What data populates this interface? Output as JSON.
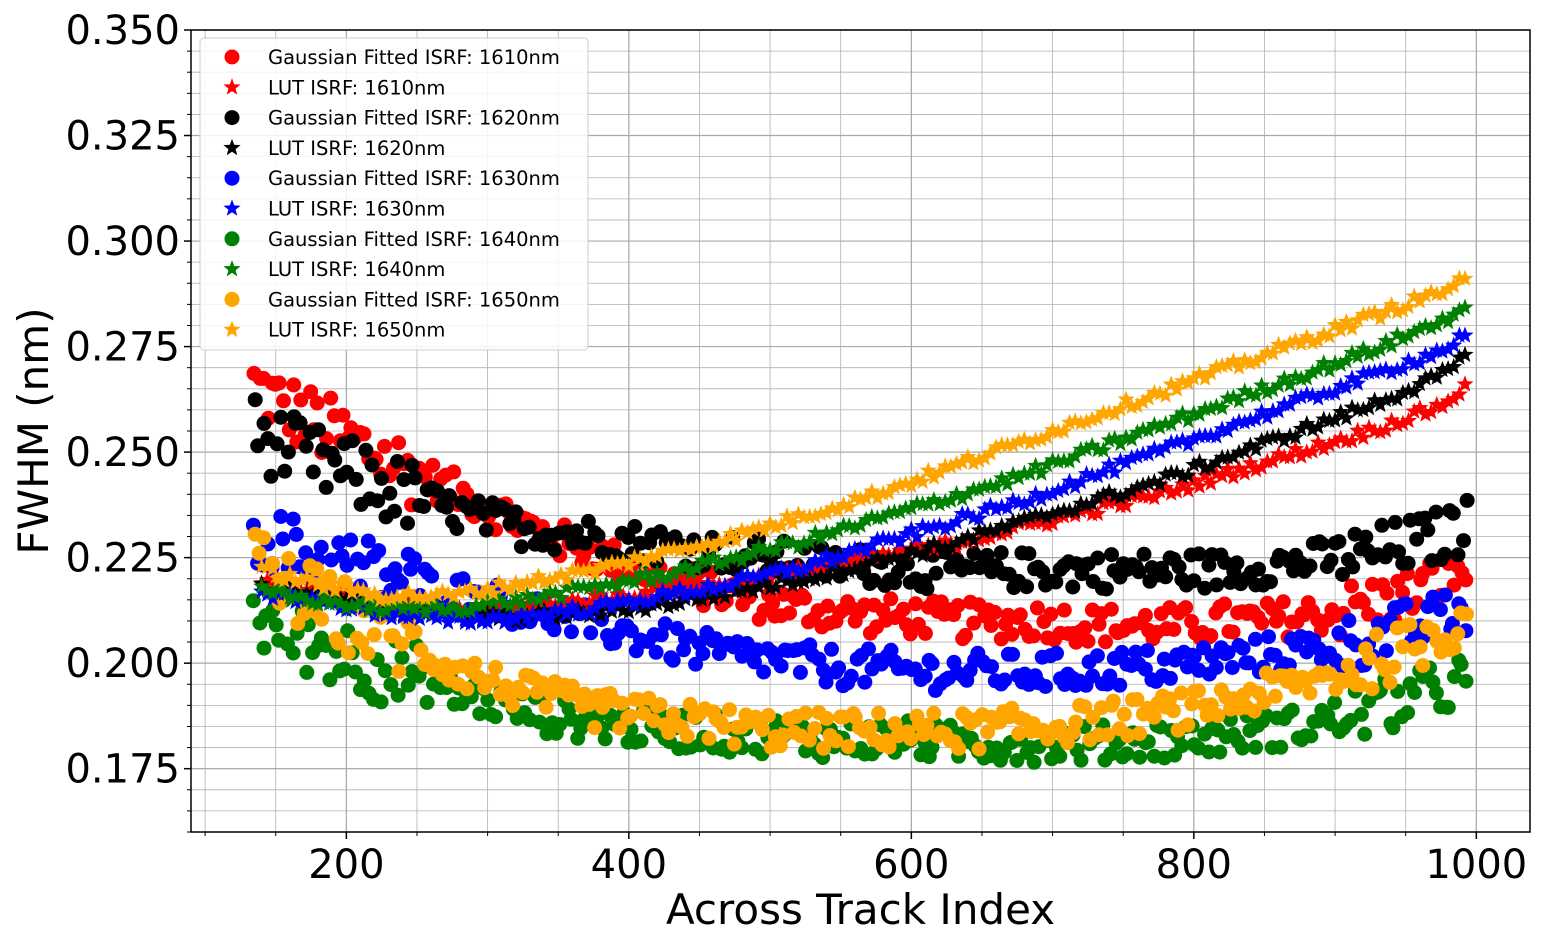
{
  "chart_data": {
    "type": "scatter",
    "title": "",
    "xlabel": "Across Track Index",
    "ylabel": "FWHM (nm)",
    "xlim": [
      90,
      1038
    ],
    "ylim": [
      0.16,
      0.35
    ],
    "x_ticks": [
      200,
      400,
      600,
      800,
      1000
    ],
    "x_tick_labels": [
      "200",
      "400",
      "600",
      "800",
      "1000"
    ],
    "y_ticks": [
      0.175,
      0.2,
      0.225,
      0.25,
      0.275,
      0.3,
      0.325,
      0.35
    ],
    "y_tick_labels": [
      "0.175",
      "0.200",
      "0.225",
      "0.250",
      "0.275",
      "0.300",
      "0.325",
      "0.350"
    ],
    "x_minor_step": 50,
    "y_minor_step": 0.005,
    "grid": "major and minor",
    "legend_position": "top-left",
    "legend": [
      {
        "label": "Gaussian Fitted ISRF: 1610nm",
        "marker": "circle",
        "color": "#ff0000"
      },
      {
        "label": "LUT ISRF: 1610nm",
        "marker": "star",
        "color": "#ff0000"
      },
      {
        "label": "Gaussian Fitted ISRF: 1620nm",
        "marker": "circle",
        "color": "#000000"
      },
      {
        "label": "LUT ISRF: 1620nm",
        "marker": "star",
        "color": "#000000"
      },
      {
        "label": "Gaussian Fitted ISRF: 1630nm",
        "marker": "circle",
        "color": "#0000ff"
      },
      {
        "label": "LUT ISRF: 1630nm",
        "marker": "star",
        "color": "#0000ff"
      },
      {
        "label": "Gaussian Fitted ISRF: 1640nm",
        "marker": "circle",
        "color": "#008000"
      },
      {
        "label": "LUT ISRF: 1640nm",
        "marker": "star",
        "color": "#008000"
      },
      {
        "label": "Gaussian Fitted ISRF: 1650nm",
        "marker": "circle",
        "color": "#ffa500"
      },
      {
        "label": "LUT ISRF: 1650nm",
        "marker": "star",
        "color": "#ffa500"
      }
    ],
    "series": [
      {
        "name": "Gaussian Fitted ISRF: 1610nm",
        "marker": "circle",
        "color": "#ff0000",
        "x": [
          135,
          150,
          175,
          200,
          225,
          250,
          275,
          300,
          325,
          350,
          375,
          400,
          425,
          450,
          475,
          500,
          525,
          550,
          575,
          600,
          625,
          650,
          675,
          700,
          725,
          750,
          775,
          800,
          825,
          850,
          875,
          900,
          925,
          950,
          975,
          995
        ],
        "y": [
          0.266,
          0.262,
          0.257,
          0.253,
          0.249,
          0.245,
          0.241,
          0.237,
          0.233,
          0.229,
          0.226,
          0.223,
          0.22,
          0.218,
          0.216,
          0.214,
          0.213,
          0.212,
          0.211,
          0.211,
          0.21,
          0.21,
          0.21,
          0.21,
          0.209,
          0.209,
          0.209,
          0.209,
          0.21,
          0.21,
          0.211,
          0.212,
          0.214,
          0.216,
          0.22,
          0.223
        ]
      },
      {
        "name": "LUT ISRF: 1610nm",
        "marker": "star",
        "color": "#ff0000",
        "x": [
          140,
          175,
          225,
          275,
          325,
          375,
          425,
          475,
          525,
          575,
          625,
          675,
          725,
          775,
          825,
          875,
          925,
          975,
          995
        ],
        "y": [
          0.219,
          0.217,
          0.214,
          0.212,
          0.213,
          0.215,
          0.217,
          0.219,
          0.222,
          0.225,
          0.228,
          0.232,
          0.236,
          0.24,
          0.245,
          0.25,
          0.255,
          0.261,
          0.266
        ]
      },
      {
        "name": "Gaussian Fitted ISRF: 1620nm",
        "marker": "circle",
        "color": "#000000",
        "x": [
          135,
          150,
          175,
          200,
          225,
          250,
          275,
          300,
          325,
          350,
          375,
          400,
          425,
          450,
          475,
          500,
          525,
          550,
          575,
          600,
          625,
          650,
          675,
          700,
          725,
          750,
          775,
          800,
          825,
          850,
          875,
          900,
          925,
          950,
          975,
          995
        ],
        "y": [
          0.255,
          0.252,
          0.248,
          0.245,
          0.242,
          0.239,
          0.236,
          0.234,
          0.232,
          0.231,
          0.23,
          0.229,
          0.228,
          0.227,
          0.226,
          0.225,
          0.224,
          0.223,
          0.223,
          0.222,
          0.222,
          0.222,
          0.222,
          0.222,
          0.222,
          0.222,
          0.222,
          0.222,
          0.222,
          0.223,
          0.224,
          0.225,
          0.226,
          0.228,
          0.23,
          0.233
        ]
      },
      {
        "name": "LUT ISRF: 1620nm",
        "marker": "star",
        "color": "#000000",
        "x": [
          140,
          175,
          225,
          275,
          325,
          375,
          425,
          475,
          525,
          575,
          625,
          675,
          725,
          775,
          825,
          875,
          925,
          975,
          995
        ],
        "y": [
          0.218,
          0.216,
          0.213,
          0.211,
          0.211,
          0.212,
          0.214,
          0.217,
          0.22,
          0.224,
          0.228,
          0.233,
          0.238,
          0.243,
          0.249,
          0.255,
          0.261,
          0.268,
          0.273
        ]
      },
      {
        "name": "Gaussian Fitted ISRF: 1630nm",
        "marker": "circle",
        "color": "#0000ff",
        "x": [
          135,
          150,
          175,
          200,
          225,
          250,
          275,
          300,
          325,
          350,
          375,
          400,
          425,
          450,
          475,
          500,
          525,
          550,
          575,
          600,
          625,
          650,
          675,
          700,
          725,
          750,
          775,
          800,
          825,
          850,
          875,
          900,
          925,
          950,
          975,
          995
        ],
        "y": [
          0.232,
          0.228,
          0.225,
          0.223,
          0.221,
          0.219,
          0.217,
          0.215,
          0.213,
          0.211,
          0.209,
          0.207,
          0.205,
          0.203,
          0.202,
          0.201,
          0.2,
          0.199,
          0.199,
          0.198,
          0.198,
          0.198,
          0.198,
          0.198,
          0.198,
          0.199,
          0.199,
          0.2,
          0.201,
          0.202,
          0.203,
          0.204,
          0.206,
          0.208,
          0.21,
          0.213
        ]
      },
      {
        "name": "LUT ISRF: 1630nm",
        "marker": "star",
        "color": "#0000ff",
        "x": [
          140,
          175,
          225,
          275,
          325,
          375,
          425,
          475,
          525,
          575,
          625,
          675,
          725,
          775,
          825,
          875,
          925,
          975,
          995
        ],
        "y": [
          0.217,
          0.215,
          0.212,
          0.21,
          0.211,
          0.213,
          0.216,
          0.219,
          0.223,
          0.228,
          0.233,
          0.238,
          0.244,
          0.25,
          0.256,
          0.262,
          0.268,
          0.274,
          0.278
        ]
      },
      {
        "name": "Gaussian Fitted ISRF: 1640nm",
        "marker": "circle",
        "color": "#008000",
        "x": [
          135,
          150,
          175,
          200,
          225,
          250,
          275,
          300,
          325,
          350,
          375,
          400,
          425,
          450,
          475,
          500,
          525,
          550,
          575,
          600,
          625,
          650,
          675,
          700,
          725,
          750,
          775,
          800,
          825,
          850,
          875,
          900,
          925,
          950,
          975,
          995
        ],
        "y": [
          0.211,
          0.208,
          0.205,
          0.202,
          0.199,
          0.196,
          0.193,
          0.191,
          0.189,
          0.187,
          0.186,
          0.185,
          0.184,
          0.184,
          0.183,
          0.183,
          0.182,
          0.182,
          0.182,
          0.182,
          0.181,
          0.181,
          0.181,
          0.181,
          0.181,
          0.181,
          0.182,
          0.182,
          0.183,
          0.184,
          0.185,
          0.187,
          0.189,
          0.191,
          0.194,
          0.197
        ]
      },
      {
        "name": "LUT ISRF: 1640nm",
        "marker": "star",
        "color": "#008000",
        "x": [
          140,
          175,
          225,
          275,
          325,
          375,
          425,
          475,
          525,
          575,
          625,
          675,
          725,
          775,
          825,
          875,
          925,
          975,
          995
        ],
        "y": [
          0.217,
          0.215,
          0.213,
          0.213,
          0.215,
          0.218,
          0.221,
          0.225,
          0.229,
          0.234,
          0.239,
          0.244,
          0.25,
          0.256,
          0.262,
          0.268,
          0.274,
          0.281,
          0.285
        ]
      },
      {
        "name": "Gaussian Fitted ISRF: 1650nm",
        "marker": "circle",
        "color": "#ffa500",
        "x": [
          135,
          150,
          175,
          200,
          225,
          250,
          275,
          300,
          325,
          350,
          375,
          400,
          425,
          450,
          475,
          500,
          525,
          550,
          575,
          600,
          625,
          650,
          675,
          700,
          725,
          750,
          775,
          800,
          825,
          850,
          875,
          900,
          925,
          950,
          975,
          995
        ],
        "y": [
          0.224,
          0.219,
          0.215,
          0.211,
          0.207,
          0.203,
          0.199,
          0.196,
          0.193,
          0.191,
          0.189,
          0.188,
          0.187,
          0.186,
          0.185,
          0.184,
          0.184,
          0.184,
          0.184,
          0.184,
          0.184,
          0.184,
          0.185,
          0.185,
          0.186,
          0.187,
          0.188,
          0.189,
          0.191,
          0.193,
          0.195,
          0.197,
          0.2,
          0.203,
          0.207,
          0.212
        ]
      },
      {
        "name": "LUT ISRF: 1650nm",
        "marker": "star",
        "color": "#ffa500",
        "x": [
          140,
          175,
          225,
          275,
          325,
          375,
          425,
          475,
          525,
          575,
          625,
          675,
          725,
          775,
          825,
          875,
          925,
          975,
          995
        ],
        "y": [
          0.222,
          0.219,
          0.216,
          0.216,
          0.219,
          0.222,
          0.226,
          0.23,
          0.235,
          0.24,
          0.246,
          0.252,
          0.258,
          0.264,
          0.27,
          0.276,
          0.282,
          0.288,
          0.291
        ]
      }
    ]
  }
}
